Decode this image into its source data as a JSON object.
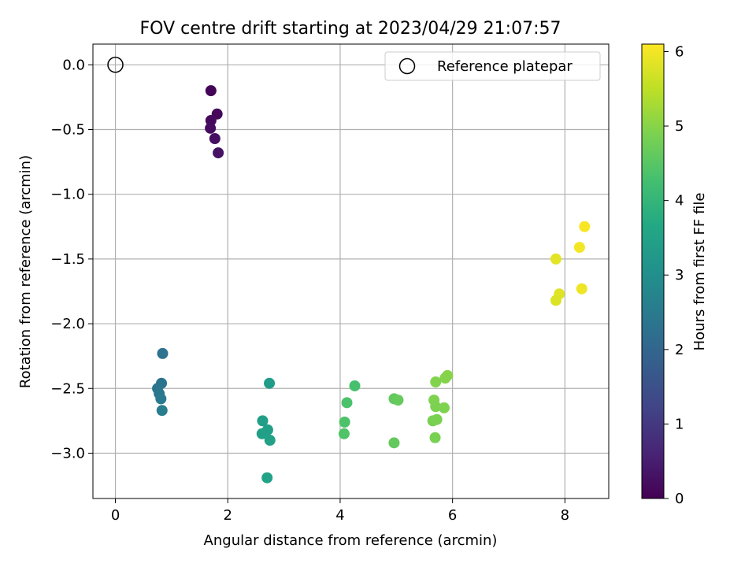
{
  "chart_data": {
    "type": "scatter",
    "title": "FOV centre drift starting at 2023/04/29 21:07:57",
    "xlabel": "Angular distance from reference (arcmin)",
    "ylabel": "Rotation from reference (arcmin)",
    "xlim": [
      -0.4,
      8.78
    ],
    "ylim": [
      -3.35,
      0.16
    ],
    "xticks": [
      0,
      2,
      4,
      6,
      8
    ],
    "xtick_labels": [
      "0",
      "2",
      "4",
      "6",
      "8"
    ],
    "yticks": [
      0.0,
      -0.5,
      -1.0,
      -1.5,
      -2.0,
      -2.5,
      -3.0
    ],
    "ytick_labels": [
      "0.0",
      "−0.5",
      "−1.0",
      "−1.5",
      "−2.0",
      "−2.5",
      "−3.0"
    ],
    "grid": true,
    "legend": {
      "position": "top-right",
      "entries": [
        "Reference platepar"
      ]
    },
    "colorbar": {
      "label": "Hours from first FF file",
      "range": [
        0,
        6.1
      ],
      "ticks": [
        0,
        1,
        2,
        3,
        4,
        5,
        6
      ],
      "tick_labels": [
        "0",
        "1",
        "2",
        "3",
        "4",
        "5",
        "6"
      ],
      "colormap": "viridis"
    },
    "reference_point": {
      "x": 0,
      "y": 0
    },
    "series": [
      {
        "points": [
          {
            "x": 1.7,
            "y": -0.2,
            "c": 0.05
          },
          {
            "x": 1.81,
            "y": -0.38,
            "c": 0.1
          },
          {
            "x": 1.7,
            "y": -0.43,
            "c": 0.15
          },
          {
            "x": 1.69,
            "y": -0.49,
            "c": 0.2
          },
          {
            "x": 1.77,
            "y": -0.57,
            "c": 0.25
          },
          {
            "x": 1.83,
            "y": -0.68,
            "c": 0.3
          },
          {
            "x": 0.84,
            "y": -2.23,
            "c": 2.3
          },
          {
            "x": 0.82,
            "y": -2.46,
            "c": 2.35
          },
          {
            "x": 0.75,
            "y": -2.5,
            "c": 2.4
          },
          {
            "x": 0.78,
            "y": -2.54,
            "c": 2.45
          },
          {
            "x": 0.81,
            "y": -2.58,
            "c": 2.5
          },
          {
            "x": 0.83,
            "y": -2.67,
            "c": 2.55
          },
          {
            "x": 2.74,
            "y": -2.46,
            "c": 3.35
          },
          {
            "x": 2.62,
            "y": -2.75,
            "c": 3.4
          },
          {
            "x": 2.71,
            "y": -2.82,
            "c": 3.42
          },
          {
            "x": 2.61,
            "y": -2.85,
            "c": 3.45
          },
          {
            "x": 2.75,
            "y": -2.9,
            "c": 3.48
          },
          {
            "x": 2.7,
            "y": -3.19,
            "c": 3.5
          },
          {
            "x": 4.26,
            "y": -2.48,
            "c": 4.3
          },
          {
            "x": 4.12,
            "y": -2.61,
            "c": 4.35
          },
          {
            "x": 4.08,
            "y": -2.76,
            "c": 4.38
          },
          {
            "x": 4.07,
            "y": -2.85,
            "c": 4.4
          },
          {
            "x": 4.96,
            "y": -2.58,
            "c": 4.6
          },
          {
            "x": 5.03,
            "y": -2.59,
            "c": 4.65
          },
          {
            "x": 4.96,
            "y": -2.92,
            "c": 4.62
          },
          {
            "x": 5.91,
            "y": -2.4,
            "c": 5.0
          },
          {
            "x": 5.87,
            "y": -2.42,
            "c": 4.98
          },
          {
            "x": 5.7,
            "y": -2.45,
            "c": 4.95
          },
          {
            "x": 5.67,
            "y": -2.59,
            "c": 4.92
          },
          {
            "x": 5.7,
            "y": -2.64,
            "c": 4.9
          },
          {
            "x": 5.85,
            "y": -2.65,
            "c": 4.93
          },
          {
            "x": 5.65,
            "y": -2.75,
            "c": 4.85
          },
          {
            "x": 5.72,
            "y": -2.74,
            "c": 4.88
          },
          {
            "x": 5.69,
            "y": -2.88,
            "c": 4.87
          },
          {
            "x": 8.35,
            "y": -1.25,
            "c": 6.05
          },
          {
            "x": 8.26,
            "y": -1.41,
            "c": 6.0
          },
          {
            "x": 7.84,
            "y": -1.5,
            "c": 5.85
          },
          {
            "x": 7.9,
            "y": -1.77,
            "c": 5.8
          },
          {
            "x": 7.84,
            "y": -1.82,
            "c": 5.78
          },
          {
            "x": 8.3,
            "y": -1.73,
            "c": 5.95
          }
        ]
      }
    ]
  }
}
